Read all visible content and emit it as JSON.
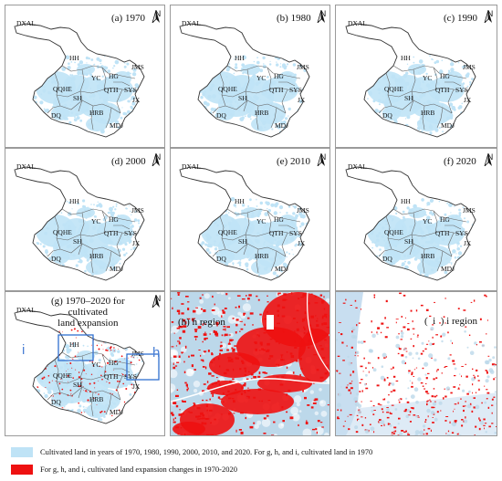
{
  "panels": [
    {
      "title": "(a) 1970"
    },
    {
      "title": "(b) 1980"
    },
    {
      "title": "(c) 1990"
    },
    {
      "title": "(d) 2000"
    },
    {
      "title": "(e) 2010"
    },
    {
      "title": "(f) 2020"
    },
    {
      "title": "(g) 1970–2020 for\ncultivated\nland expansion"
    },
    {
      "title": "(h) h region"
    },
    {
      "title": "( i ) i region"
    }
  ],
  "north_label": "N",
  "region_labels": [
    "DXAL",
    "HH",
    "JMS",
    "HG",
    "YC",
    "QQHE",
    "QTH",
    "SYS",
    "SH",
    "JX",
    "DQ",
    "HRB",
    "MDJ"
  ],
  "markers": {
    "i": "i",
    "h": "h"
  },
  "legend": {
    "items": [
      {
        "label": "Cultivated land in years of 1970, 1980, 1990, 2000, 2010, and 2020.  For g, h, and i,  cultivated land in 1970",
        "color": "#bfe3f6"
      },
      {
        "label": "For g, h, and i,  cultivated land expansion changes in 1970-2020",
        "color": "#ee1111"
      }
    ]
  },
  "colors": {
    "cultivated": "#bfe3f6",
    "expansion": "#ee1111",
    "outline": "#333333",
    "frame": "#2f6fd0"
  }
}
